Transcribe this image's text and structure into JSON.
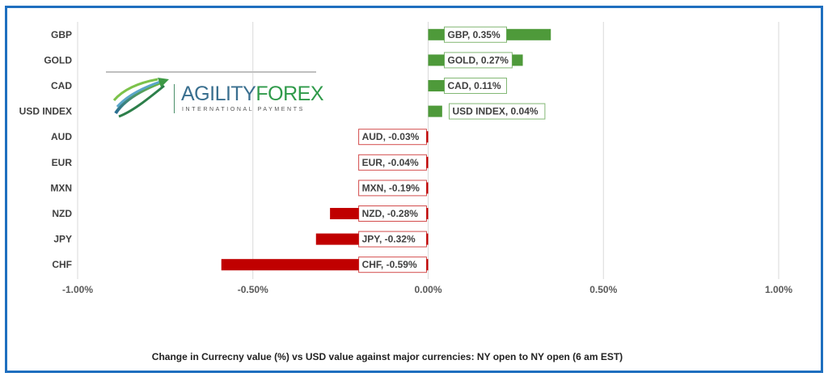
{
  "chart_data": {
    "type": "bar",
    "orientation": "horizontal",
    "categories": [
      "GBP",
      "GOLD",
      "CAD",
      "USD INDEX",
      "AUD",
      "EUR",
      "MXN",
      "NZD",
      "JPY",
      "CHF"
    ],
    "values": [
      0.35,
      0.27,
      0.11,
      0.04,
      -0.03,
      -0.04,
      -0.19,
      -0.28,
      -0.32,
      -0.59
    ],
    "data_labels": [
      "GBP, 0.35%",
      "GOLD, 0.27%",
      "CAD, 0.11%",
      "USD INDEX, 0.04%",
      "AUD, -0.03%",
      "EUR, -0.04%",
      "MXN, -0.19%",
      "NZD, -0.28%",
      "JPY, -0.32%",
      "CHF, -0.59%"
    ],
    "x_ticks": [
      -1.0,
      -0.5,
      0.0,
      0.5,
      1.0
    ],
    "x_tick_labels": [
      "-1.00%",
      "-0.50%",
      "0.00%",
      "0.50%",
      "1.00%"
    ],
    "xlim": [
      -1.0,
      1.0
    ],
    "grid": true,
    "colors": {
      "positive": "#4e9a3a",
      "negative": "#c00000",
      "label_border_positive": "#4e9a3a",
      "label_border_negative": "#c00000",
      "frame": "#1f6fbf"
    },
    "caption": "Change in Currecny value (%) vs USD value  against major currencies:  NY open to NY open  (6 am EST)"
  },
  "logo": {
    "name_part1": "AGILITY",
    "name_part2": "FOREX",
    "tagline": "INTERNATIONAL PAYMENTS",
    "icon": "globe-swoosh-icon"
  }
}
